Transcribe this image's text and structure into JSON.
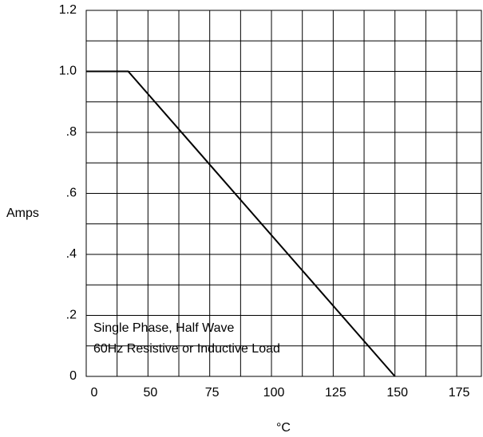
{
  "chart_data": {
    "type": "line",
    "y_label": "Amps",
    "x_label": "°C",
    "x_origin_label": "0",
    "annotations": [
      "Single Phase, Half Wave",
      "60Hz Resistive or Inductive Load"
    ],
    "x": [
      25,
      42,
      150
    ],
    "series": [
      {
        "color": "#000000",
        "values": [
          1.0,
          1.0,
          0
        ]
      }
    ],
    "xlim": [
      25,
      185
    ],
    "xticks": [
      50,
      75,
      100,
      125,
      150,
      175
    ],
    "xgrid": [
      25,
      37.5,
      50,
      62.5,
      75,
      87.5,
      100,
      112.5,
      125,
      137.5,
      150,
      162.5,
      175
    ],
    "ylim": [
      0,
      1.2
    ],
    "yticks": [
      0,
      {
        "value": 0.2,
        "label": ".2"
      },
      {
        "value": 0.4,
        "label": ".4"
      },
      {
        "value": 0.6,
        "label": ".6"
      },
      {
        "value": 0.8,
        "label": ".8"
      },
      {
        "value": 1.0,
        "label": "1.0"
      },
      1.2
    ],
    "ygrid": [
      0,
      0.1,
      0.2,
      0.3,
      0.4,
      0.5,
      0.6,
      0.7,
      0.8,
      0.9,
      1.0,
      1.1,
      1.2
    ],
    "grid": true
  }
}
